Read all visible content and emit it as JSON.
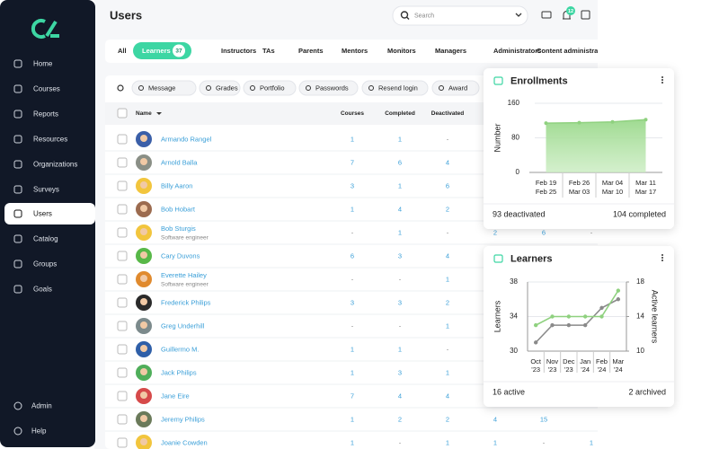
{
  "sidebar": {
    "items": [
      {
        "label": "Home"
      },
      {
        "label": "Courses"
      },
      {
        "label": "Reports"
      },
      {
        "label": "Resources"
      },
      {
        "label": "Organizations"
      },
      {
        "label": "Surveys"
      },
      {
        "label": "Users",
        "active": true
      },
      {
        "label": "Catalog"
      },
      {
        "label": "Groups"
      },
      {
        "label": "Goals"
      }
    ],
    "footer": [
      {
        "label": "Admin"
      },
      {
        "label": "Help"
      }
    ]
  },
  "header": {
    "title": "Users",
    "search_placeholder": "Search",
    "notifications": 12
  },
  "tabs": [
    {
      "label": "All"
    },
    {
      "label": "Learners",
      "count": 37,
      "active": true
    },
    {
      "label": "Instructors"
    },
    {
      "label": "TAs"
    },
    {
      "label": "Parents"
    },
    {
      "label": "Mentors"
    },
    {
      "label": "Monitors"
    },
    {
      "label": "Managers"
    },
    {
      "label": "Administrators"
    },
    {
      "label": "Content administrators"
    }
  ],
  "toolbar": [
    "Message",
    "Grades",
    "Portfolio",
    "Passwords",
    "Resend login",
    "Award"
  ],
  "table": {
    "columns": [
      "Name",
      "Courses",
      "Completed",
      "Deactivated"
    ],
    "rows": [
      {
        "name": "Armando Rangel",
        "cells": [
          1,
          1,
          "-"
        ]
      },
      {
        "name": "Arnold Balla",
        "cells": [
          7,
          6,
          4
        ]
      },
      {
        "name": "Billy Aaron",
        "cells": [
          3,
          1,
          6
        ]
      },
      {
        "name": "Bob Hobart",
        "cells": [
          1,
          4,
          2
        ]
      },
      {
        "name": "Bob Sturgis",
        "subtitle": "Software engineer",
        "cells": [
          "-",
          1,
          "-"
        ],
        "extra": [
          2,
          6,
          "-"
        ]
      },
      {
        "name": "Cary Duvons",
        "cells": [
          6,
          3,
          4
        ]
      },
      {
        "name": "Everette Hailey",
        "subtitle": "Software engineer",
        "cells": [
          "-",
          "-",
          1
        ]
      },
      {
        "name": "Frederick Philips",
        "cells": [
          3,
          3,
          2
        ]
      },
      {
        "name": "Greg Underhill",
        "cells": [
          "-",
          "-",
          1
        ]
      },
      {
        "name": "Guillermo M.",
        "cells": [
          1,
          1,
          "-"
        ]
      },
      {
        "name": "Jack Philips",
        "cells": [
          1,
          3,
          1
        ]
      },
      {
        "name": "Jane Eire",
        "cells": [
          7,
          4,
          4
        ]
      },
      {
        "name": "Jeremy Philips",
        "cells": [
          1,
          2,
          2
        ],
        "extra": [
          4,
          15
        ]
      },
      {
        "name": "Joanie Cowden",
        "cells": [
          1,
          "-",
          1
        ],
        "extra": [
          1,
          "-",
          1
        ]
      }
    ]
  },
  "chart_data": [
    {
      "type": "area",
      "title": "Enrollments",
      "ylabel": "Number",
      "categories": [
        [
          "Feb 19",
          "Feb 25"
        ],
        [
          "Feb 26",
          "Mar 03"
        ],
        [
          "Mar 04",
          "Mar 10"
        ],
        [
          "Mar 11",
          "Mar 17"
        ]
      ],
      "values": [
        114,
        115,
        117,
        122
      ],
      "color": "#8fd17f",
      "ylim": [
        0,
        160
      ],
      "yticks": [
        0,
        80,
        160
      ],
      "grid": true,
      "footer": [
        "93 deactivated",
        "104 completed"
      ]
    },
    {
      "type": "line",
      "title": "Learners",
      "ylabel": "Learners",
      "y2label": "Active learners",
      "categories": [
        [
          "Oct",
          "'23"
        ],
        [
          "Nov",
          "'23"
        ],
        [
          "Dec",
          "'23"
        ],
        [
          "Jan",
          "'24"
        ],
        [
          "Feb",
          "'24"
        ],
        [
          "Mar",
          "'24"
        ]
      ],
      "series": [
        {
          "color": "#8a8a8a",
          "values": [
            31,
            33,
            33,
            33,
            35,
            36
          ]
        },
        {
          "color": "#8fd17f",
          "axis": "y2",
          "values": [
            13,
            14,
            14,
            14,
            14,
            17
          ]
        }
      ],
      "ylim": [
        30,
        38
      ],
      "yticks": [
        30,
        34,
        38
      ],
      "y2lim": [
        10,
        18
      ],
      "y2ticks": [
        10,
        14,
        18
      ],
      "grid": true,
      "footer": [
        "16 active",
        "2 archived"
      ]
    }
  ]
}
